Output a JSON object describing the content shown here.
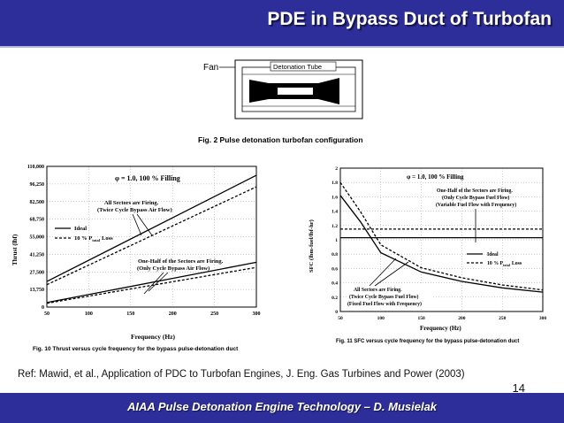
{
  "slide": {
    "title": "PDE in Bypass Duct of Turbofan",
    "footer": "AIAA Pulse Detonation Engine Technology – D. Musielak",
    "reference": "Ref: Mawid, et al., Application of PDC to Turbofan Engines, J. Eng. Gas Turbines and Power (2003)",
    "page_number": "14"
  },
  "fig2": {
    "fan_label": "Fan",
    "tube_label": "Detonation Tube",
    "caption": "Fig. 2   Pulse detonation turbofan configuration"
  },
  "chart_data": [
    {
      "type": "line",
      "condition": "φ = 1.0,   100 % Filling",
      "xlabel": "Frequency (Hz)",
      "ylabel": "Thrust (lbf)",
      "xlim": [
        50,
        300
      ],
      "ylim": [
        0,
        110000
      ],
      "xticks": [
        "50",
        "100",
        "150",
        "200",
        "250",
        "300"
      ],
      "yticks": [
        "0",
        "13,750",
        "27,500",
        "41,250",
        "55,000",
        "68,750",
        "82,500",
        "96,250",
        "110,000"
      ],
      "ytick_values": [
        0,
        13750,
        27500,
        41250,
        55000,
        68750,
        82500,
        96250,
        110000
      ],
      "legend": {
        "ideal": "Ideal",
        "loss": "10 % P",
        "loss_sub": "total",
        "loss_tail": "Loss"
      },
      "annotations": [
        "All Sectors are Firing.",
        "(Twice Cycle Bypass Air Flow)",
        "One-Half of the Sectors are Firing.",
        "(Only Cycle Bypass Air Flow)"
      ],
      "series": [
        {
          "style": "solid",
          "x": [
            50,
            300
          ],
          "y": [
            20000,
            103000
          ]
        },
        {
          "style": "dashed",
          "x": [
            50,
            300
          ],
          "y": [
            17500,
            94000
          ]
        },
        {
          "style": "solid",
          "x": [
            50,
            300
          ],
          "y": [
            3500,
            35000
          ]
        },
        {
          "style": "dashed",
          "x": [
            50,
            300
          ],
          "y": [
            3000,
            31000
          ]
        }
      ],
      "caption": "Fig. 10   Thrust versus cycle frequency for the bypass pulse-detonation duct",
      "grid": true,
      "legend_position": "left"
    },
    {
      "type": "line",
      "condition": "φ = 1.0,   100 % Filling",
      "xlabel": "Frequency (Hz)",
      "ylabel": "SFC (lbm-fuel/lbf-hr)",
      "xlim": [
        50,
        300
      ],
      "ylim": [
        0,
        2
      ],
      "xticks": [
        "50",
        "100",
        "150",
        "200",
        "250",
        "300"
      ],
      "yticks": [
        "0",
        "0.2",
        "0.4",
        "0.6",
        "0.8",
        "1",
        "1.2",
        "1.4",
        "1.6",
        "1.8",
        "2"
      ],
      "ytick_values": [
        0,
        0.2,
        0.4,
        0.6,
        0.8,
        1,
        1.2,
        1.4,
        1.6,
        1.8,
        2
      ],
      "legend": {
        "ideal": "Ideal",
        "loss": "10 % P",
        "loss_sub": "total",
        "loss_tail": "Loss"
      },
      "annotations": [
        "One-Half of the Sectors are Firing.",
        "(Only Cycle Bypass Fuel Flow)",
        "(Variable Fuel Flow with Frequency)",
        "All Sectors are Firing.",
        "(Twice Cycle Bypass Fuel Flow)",
        "(Fixed Fuel Flow with Frequency)"
      ],
      "series": [
        {
          "style": "solid",
          "x": [
            50,
            300
          ],
          "y": [
            1.03,
            1.03
          ]
        },
        {
          "style": "dashed",
          "x": [
            50,
            300
          ],
          "y": [
            1.15,
            1.15
          ]
        },
        {
          "style": "solid",
          "x": [
            50,
            75,
            100,
            150,
            200,
            250,
            300
          ],
          "y": [
            1.62,
            1.25,
            0.82,
            0.55,
            0.42,
            0.33,
            0.27
          ]
        },
        {
          "style": "dashed",
          "x": [
            50,
            75,
            100,
            150,
            200,
            250,
            300
          ],
          "y": [
            1.8,
            1.39,
            0.93,
            0.61,
            0.47,
            0.37,
            0.3
          ]
        }
      ],
      "caption": "Fig. 11   SFC versus cycle frequency for the bypass pulse-detonation duct",
      "grid": true,
      "legend_position": "right"
    }
  ]
}
